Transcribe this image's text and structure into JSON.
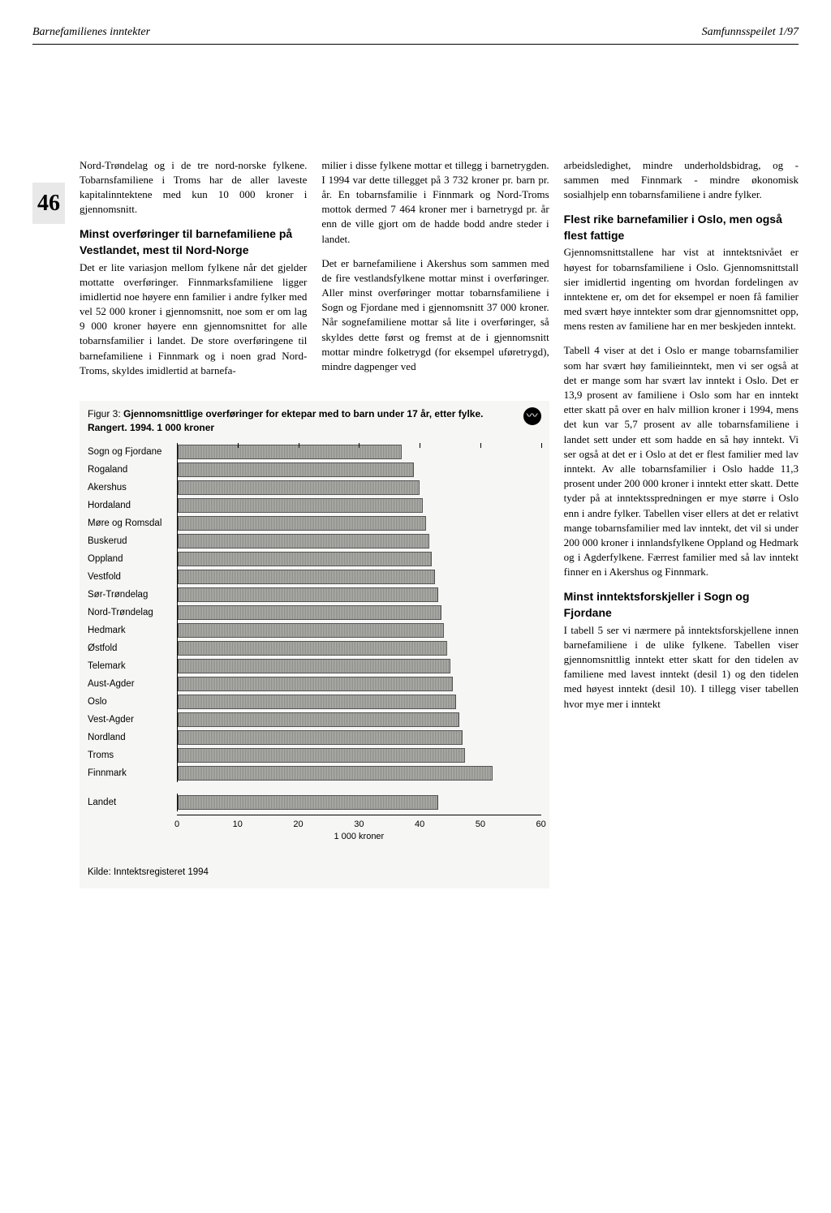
{
  "header": {
    "left": "Barnefamilienes inntekter",
    "right": "Samfunnsspeilet 1/97"
  },
  "page_number": "46",
  "col1": {
    "p1": "Nord-Trøndelag og i de tre nord-norske fylkene. Tobarnsfamiliene i Troms har de aller laveste kapitalinntektene med kun 10 000 kroner i gjennomsnitt.",
    "h1": "Minst overføringer til barnefamiliene på Vestlandet, mest til Nord-Norge",
    "p2": "Det er lite variasjon mellom fylkene når det gjelder mottatte overføringer. Finnmarksfamiliene ligger imidlertid noe høyere enn familier i andre fylker med vel 52 000 kroner i gjennomsnitt, noe som er om lag 9 000 kroner høyere enn gjennomsnittet for alle tobarnsfamilier i landet. De store overføringene til barnefamiliene i Finnmark og i noen grad Nord-Troms, skyldes imidlertid at barnefa-"
  },
  "col2": {
    "p1": "milier i disse fylkene mottar et tillegg i barnetrygden. I 1994 var dette tillegget på 3 732 kroner pr. barn pr. år. En tobarnsfamilie i Finnmark og Nord-Troms mottok dermed 7 464 kroner mer i barnetrygd pr. år enn de ville gjort om de hadde bodd andre steder i landet.",
    "p2": "Det er barnefamiliene i Akershus som sammen med de fire vestlandsfylkene mottar minst i overføringer. Aller minst overføringer mottar tobarnsfamiliene i Sogn og Fjordane med i gjennomsnitt 37 000 kroner. Når sognefamiliene mottar så lite i overføringer, så skyldes dette først og fremst at de i gjennomsnitt mottar mindre folketrygd (for eksempel uføretrygd), mindre dagpenger ved"
  },
  "col3": {
    "p1": "arbeidsledighet, mindre underholdsbidrag, og - sammen med Finnmark - mindre økonomisk sosialhjelp enn tobarnsfamiliene i andre fylker.",
    "h1": "Flest rike barnefamilier i Oslo, men også flest fattige",
    "p2": "Gjennomsnittstallene har vist at inntektsnivået er høyest for tobarnsfamiliene i Oslo. Gjennomsnittstall sier imidlertid ingenting om hvordan fordelingen av inntektene er, om det for eksempel er noen få familier med svært høye inntekter som drar gjennomsnittet opp, mens resten av familiene har en mer beskjeden inntekt.",
    "p3": "Tabell 4 viser at det i Oslo er mange tobarnsfamilier som har svært høy familieinntekt, men vi ser også at det er mange som har svært lav inntekt i Oslo. Det er 13,9 prosent av familiene i Oslo som har en inntekt etter skatt på over en halv million kroner i 1994, mens det kun var 5,7 prosent av alle tobarnsfamiliene i landet sett under ett som hadde en så høy inntekt. Vi ser også at det er i Oslo at det er flest familier med lav inntekt. Av alle tobarnsfamilier i Oslo hadde 11,3 prosent under 200 000 kroner i inntekt etter skatt. Dette tyder på at inntektsspredningen er mye større i Oslo enn i andre fylker. Tabellen viser ellers at det er relativt mange tobarnsfamilier med lav inntekt, det vil si under 200 000 kroner i innlandsfylkene Oppland og Hedmark og i Agderfylkene. Færrest familier med så lav inntekt finner en i Akershus og Finnmark.",
    "h2": "Minst inntektsforskjeller i Sogn og Fjordane",
    "p4": "I tabell 5 ser vi nærmere på inntektsforskjellene innen barnefamiliene i de ulike fylkene. Tabellen viser gjennomsnittlig inntekt etter skatt for den tidelen av familiene med lavest inntekt (desil 1) og den tidelen med høyest inntekt (desil 10). I tillegg viser tabellen hvor mye mer i inntekt"
  },
  "figure": {
    "caption_prefix": "Figur 3: ",
    "caption_bold": "Gjennomsnittlige overføringer for ektepar med to barn under 17 år, etter fylke. Rangert. 1994. 1 000 kroner",
    "xmax": 60,
    "xtick_step": 10,
    "xlabel": "1 000 kroner",
    "bar_color": "#9a9a96",
    "grid_color": "#000000",
    "background_color": "#f6f6f4",
    "bars": [
      {
        "label": "Sogn og Fjordane",
        "value": 37
      },
      {
        "label": "Rogaland",
        "value": 39
      },
      {
        "label": "Akershus",
        "value": 40
      },
      {
        "label": "Hordaland",
        "value": 40.5
      },
      {
        "label": "Møre og Romsdal",
        "value": 41
      },
      {
        "label": "Buskerud",
        "value": 41.5
      },
      {
        "label": "Oppland",
        "value": 42
      },
      {
        "label": "Vestfold",
        "value": 42.5
      },
      {
        "label": "Sør-Trøndelag",
        "value": 43
      },
      {
        "label": "Nord-Trøndelag",
        "value": 43.5
      },
      {
        "label": "Hedmark",
        "value": 44
      },
      {
        "label": "Østfold",
        "value": 44.5
      },
      {
        "label": "Telemark",
        "value": 45
      },
      {
        "label": "Aust-Agder",
        "value": 45.5
      },
      {
        "label": "Oslo",
        "value": 46
      },
      {
        "label": "Vest-Agder",
        "value": 46.5
      },
      {
        "label": "Nordland",
        "value": 47
      },
      {
        "label": "Troms",
        "value": 47.5
      },
      {
        "label": "Finnmark",
        "value": 52
      }
    ],
    "bars2": [
      {
        "label": "Landet",
        "value": 43
      }
    ],
    "source": "Kilde: Inntektsregisteret 1994"
  }
}
